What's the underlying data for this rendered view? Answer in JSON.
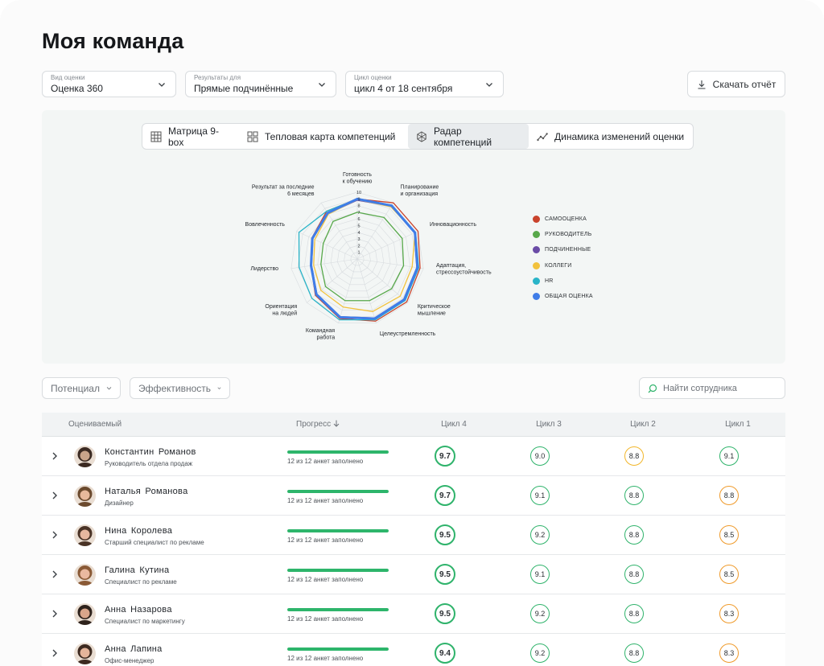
{
  "page": {
    "title": "Моя команда"
  },
  "filters": [
    {
      "label": "Вид оценки",
      "value": "Оценка 360"
    },
    {
      "label": "Результаты для",
      "value": "Прямые подчинённые"
    },
    {
      "label": "Цикл оценки",
      "value": "цикл 4 от 18 сентября"
    }
  ],
  "report_button": "Скачать отчёт",
  "tabs": [
    {
      "label": "Матрица 9-box",
      "icon": "grid-icon"
    },
    {
      "label": "Тепловая карта компетенций",
      "icon": "heatmap-icon"
    },
    {
      "label": "Радар компетенций",
      "icon": "radar-icon",
      "active": true
    },
    {
      "label": "Динамика изменений оценки",
      "icon": "trend-icon"
    }
  ],
  "chart_data": {
    "type": "radar",
    "rlim": [
      0,
      10
    ],
    "ticks": [
      1,
      2,
      3,
      4,
      5,
      6,
      7,
      8,
      9,
      10
    ],
    "axes": [
      [
        "Готовность",
        "к обучению"
      ],
      [
        "Планирование",
        "и организация"
      ],
      [
        "Инновационность"
      ],
      [
        "Адаптация,",
        "стрессоустойчивость"
      ],
      [
        "Критическое",
        "мышление"
      ],
      [
        "Целеустремленность"
      ],
      [
        "Командная",
        "работа"
      ],
      [
        "Ориентация",
        "на людей"
      ],
      [
        "Лидерство"
      ],
      [
        "Вовлеченность"
      ],
      [
        "Результат за последние",
        "6 месяцев"
      ]
    ],
    "legend_position": "right",
    "series": [
      {
        "name": "САМООЦЕНКА",
        "color": "#c9432c",
        "values": [
          9.0,
          10.0,
          10.0,
          9.5,
          9.8,
          9.7,
          9.3,
          8.3,
          7.0,
          7.5,
          8.5
        ]
      },
      {
        "name": "РУКОВОДИТЕЛЬ",
        "color": "#57a84a",
        "values": [
          7.0,
          7.4,
          7.4,
          7.0,
          6.8,
          6.5,
          6.5,
          6.3,
          5.5,
          5.6,
          6.7
        ]
      },
      {
        "name": "ПОДЧИНЕННЫЕ",
        "color": "#6a4ba6",
        "values": [
          8.8,
          9.4,
          9.4,
          9.0,
          9.2,
          9.2,
          9.0,
          8.0,
          6.9,
          7.3,
          8.1
        ]
      },
      {
        "name": "КОЛЛЕГИ",
        "color": "#f2c23d",
        "values": [
          8.9,
          9.3,
          9.5,
          8.3,
          8.5,
          8.2,
          7.5,
          7.2,
          6.6,
          7.0,
          8.0
        ]
      },
      {
        "name": "HR",
        "color": "#29b4c8",
        "values": [
          9.0,
          9.6,
          9.6,
          9.3,
          9.5,
          9.5,
          9.5,
          9.0,
          8.8,
          9.6,
          8.5
        ]
      },
      {
        "name": "ОБЩАЯ ОЦЕНКА",
        "color": "#3f7de8",
        "values": [
          9.0,
          9.5,
          9.5,
          9.1,
          9.3,
          9.3,
          9.1,
          8.1,
          7.0,
          7.4,
          8.2
        ]
      }
    ]
  },
  "table_filters": {
    "potential": "Потенциал",
    "efficiency": "Эффективность"
  },
  "search": {
    "placeholder": "Найти сотрудника"
  },
  "table": {
    "columns": {
      "person": "Оцениваемый",
      "progress": "Прогресс",
      "c4": "Цикл 4",
      "c3": "Цикл 3",
      "c2": "Цикл 2",
      "c1": "Цикл 1"
    },
    "rows": [
      {
        "name": "Константин Романов",
        "role": "Руководитель отдела продаж",
        "progress": 1.0,
        "progress_text": "12 из 12 анкет заполнено",
        "c4": "9.7",
        "c3": "9.0",
        "c2": "8.8",
        "c1": "9.1",
        "c2_color": "yellow",
        "c1_color": "green"
      },
      {
        "name": "Наталья Романова",
        "role": "Дизайнер",
        "progress": 1.0,
        "progress_text": "12 из 12 анкет заполнено",
        "c4": "9.7",
        "c3": "9.1",
        "c2": "8.8",
        "c1": "8.8",
        "c2_color": "green",
        "c1_color": "orange"
      },
      {
        "name": "Нина Королева",
        "role": "Старший специалист по рекламе",
        "progress": 1.0,
        "progress_text": "12 из 12 анкет заполнено",
        "c4": "9.5",
        "c3": "9.2",
        "c2": "8.8",
        "c1": "8.5",
        "c2_color": "green",
        "c1_color": "orange"
      },
      {
        "name": "Галина Кутина",
        "role": "Специалист по рекламе",
        "progress": 1.0,
        "progress_text": "12 из 12 анкет заполнено",
        "c4": "9.5",
        "c3": "9.1",
        "c2": "8.8",
        "c1": "8.5",
        "c2_color": "green",
        "c1_color": "orange"
      },
      {
        "name": "Анна Назарова",
        "role": "Специалист по маркетингу",
        "progress": 1.0,
        "progress_text": "12 из 12 анкет заполнено",
        "c4": "9.5",
        "c3": "9.2",
        "c2": "8.8",
        "c1": "8.3",
        "c2_color": "green",
        "c1_color": "orange"
      },
      {
        "name": "Анна Лапина",
        "role": "Офис-менеджер",
        "progress": 1.0,
        "progress_text": "12 из 12 анкет заполнено",
        "c4": "9.4",
        "c3": "9.2",
        "c2": "8.8",
        "c1": "8.3",
        "c2_color": "green",
        "c1_color": "orange"
      }
    ]
  }
}
